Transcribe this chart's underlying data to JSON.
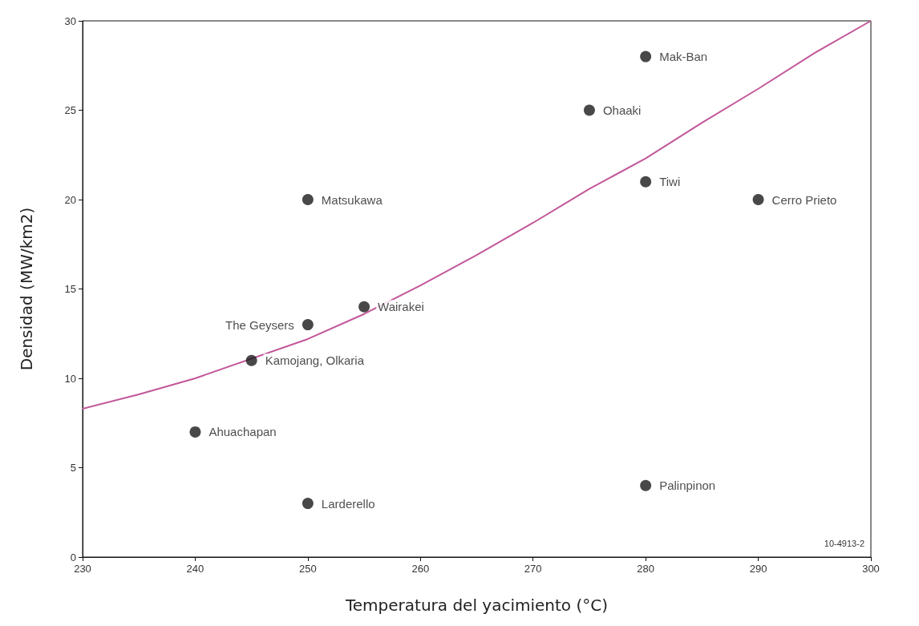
{
  "chart_data": {
    "type": "scatter",
    "xlabel": "Temperatura del yacimiento (°C)",
    "ylabel": "Densidad (MW/km2)",
    "xlim": [
      230,
      300
    ],
    "xticks": [
      230,
      240,
      250,
      260,
      270,
      280,
      290,
      300
    ],
    "ylim": [
      0,
      30
    ],
    "yticks": [
      0,
      5,
      10,
      15,
      20,
      25,
      30
    ],
    "grid": false,
    "legend": false,
    "marker": "circle",
    "annotations": [
      "10-4913-2"
    ],
    "series": [
      {
        "name": "Mak-Ban",
        "color": "#1a1a1a",
        "x": [
          280
        ],
        "values": [
          28
        ]
      },
      {
        "name": "Ohaaki",
        "color": "#1a1a1a",
        "x": [
          275
        ],
        "values": [
          25
        ]
      },
      {
        "name": "Tiwi",
        "color": "#1a1a1a",
        "x": [
          280
        ],
        "values": [
          21
        ]
      },
      {
        "name": "Matsukawa",
        "color": "#1a1a1a",
        "x": [
          250
        ],
        "values": [
          20
        ]
      },
      {
        "name": "Cerro Prieto",
        "color": "#1a1a1a",
        "x": [
          290
        ],
        "values": [
          20
        ]
      },
      {
        "name": "Wairakei",
        "color": "#1a1a1a",
        "x": [
          255
        ],
        "values": [
          14
        ]
      },
      {
        "name": "The Geysers",
        "color": "#1a1a1a",
        "x": [
          250
        ],
        "values": [
          13
        ]
      },
      {
        "name": "Kamojang, Olkaria",
        "color": "#1a1a1a",
        "x": [
          245
        ],
        "values": [
          11
        ]
      },
      {
        "name": "Ahuachapan",
        "color": "#1a1a1a",
        "x": [
          240
        ],
        "values": [
          7
        ]
      },
      {
        "name": "Palinpinon",
        "color": "#1a1a1a",
        "x": [
          280
        ],
        "values": [
          4
        ]
      },
      {
        "name": "Larderello",
        "color": "#1a1a1a",
        "x": [
          250
        ],
        "values": [
          3
        ]
      },
      {
        "type": "line",
        "color": "#c2579a",
        "line_style": "solid",
        "marker": "none",
        "x": [
          230,
          235,
          240,
          250,
          255,
          260,
          265,
          270,
          275,
          280,
          285,
          290,
          295,
          300
        ],
        "values": [
          8.3,
          9.1,
          10.0,
          12.2,
          13.6,
          15.2,
          16.9,
          18.7,
          20.6,
          22.3,
          24.3,
          26.2,
          28.2,
          30
        ]
      }
    ]
  }
}
